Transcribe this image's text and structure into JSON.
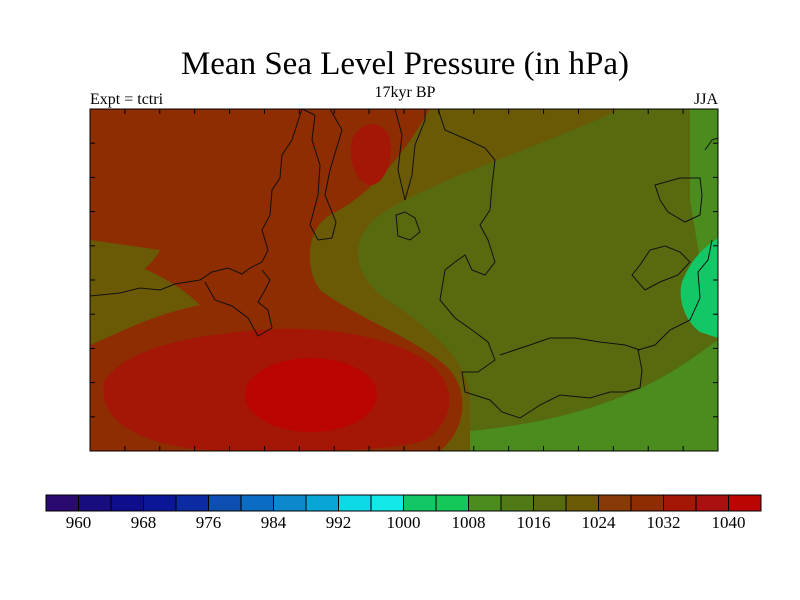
{
  "header": {
    "title": "Mean Sea Level Pressure (in hPa)",
    "subtitle": "17kyr BP",
    "left_label": "Expt = tctri",
    "right_label": "JJA"
  },
  "legend": {
    "colors": [
      "#2a0a6e",
      "#170d7e",
      "#0e0e8c",
      "#0a1696",
      "#0c2aa2",
      "#0c4fb0",
      "#0a6cc2",
      "#0c88cc",
      "#08a6d6",
      "#0ed9e6",
      "#14e8e8",
      "#12c866",
      "#14c85a",
      "#4a8c1e",
      "#4f7a16",
      "#586a10",
      "#6a5a06",
      "#883a06",
      "#8e2c02",
      "#a41606",
      "#aa1010",
      "#bb0404"
    ],
    "labels": [
      "960",
      "968",
      "976",
      "984",
      "992",
      "1000",
      "1008",
      "1016",
      "1024",
      "1032",
      "1040"
    ]
  },
  "map": {
    "palette": {
      "p1040": "#bb0404",
      "p1032": "#a41606",
      "p1024": "#8e2c02",
      "p1020": "#6a5a06",
      "p1016": "#586a10",
      "p1012": "#4a8c1e",
      "p1008": "#12c866",
      "frame": "#000000",
      "coast": "#111111"
    }
  }
}
